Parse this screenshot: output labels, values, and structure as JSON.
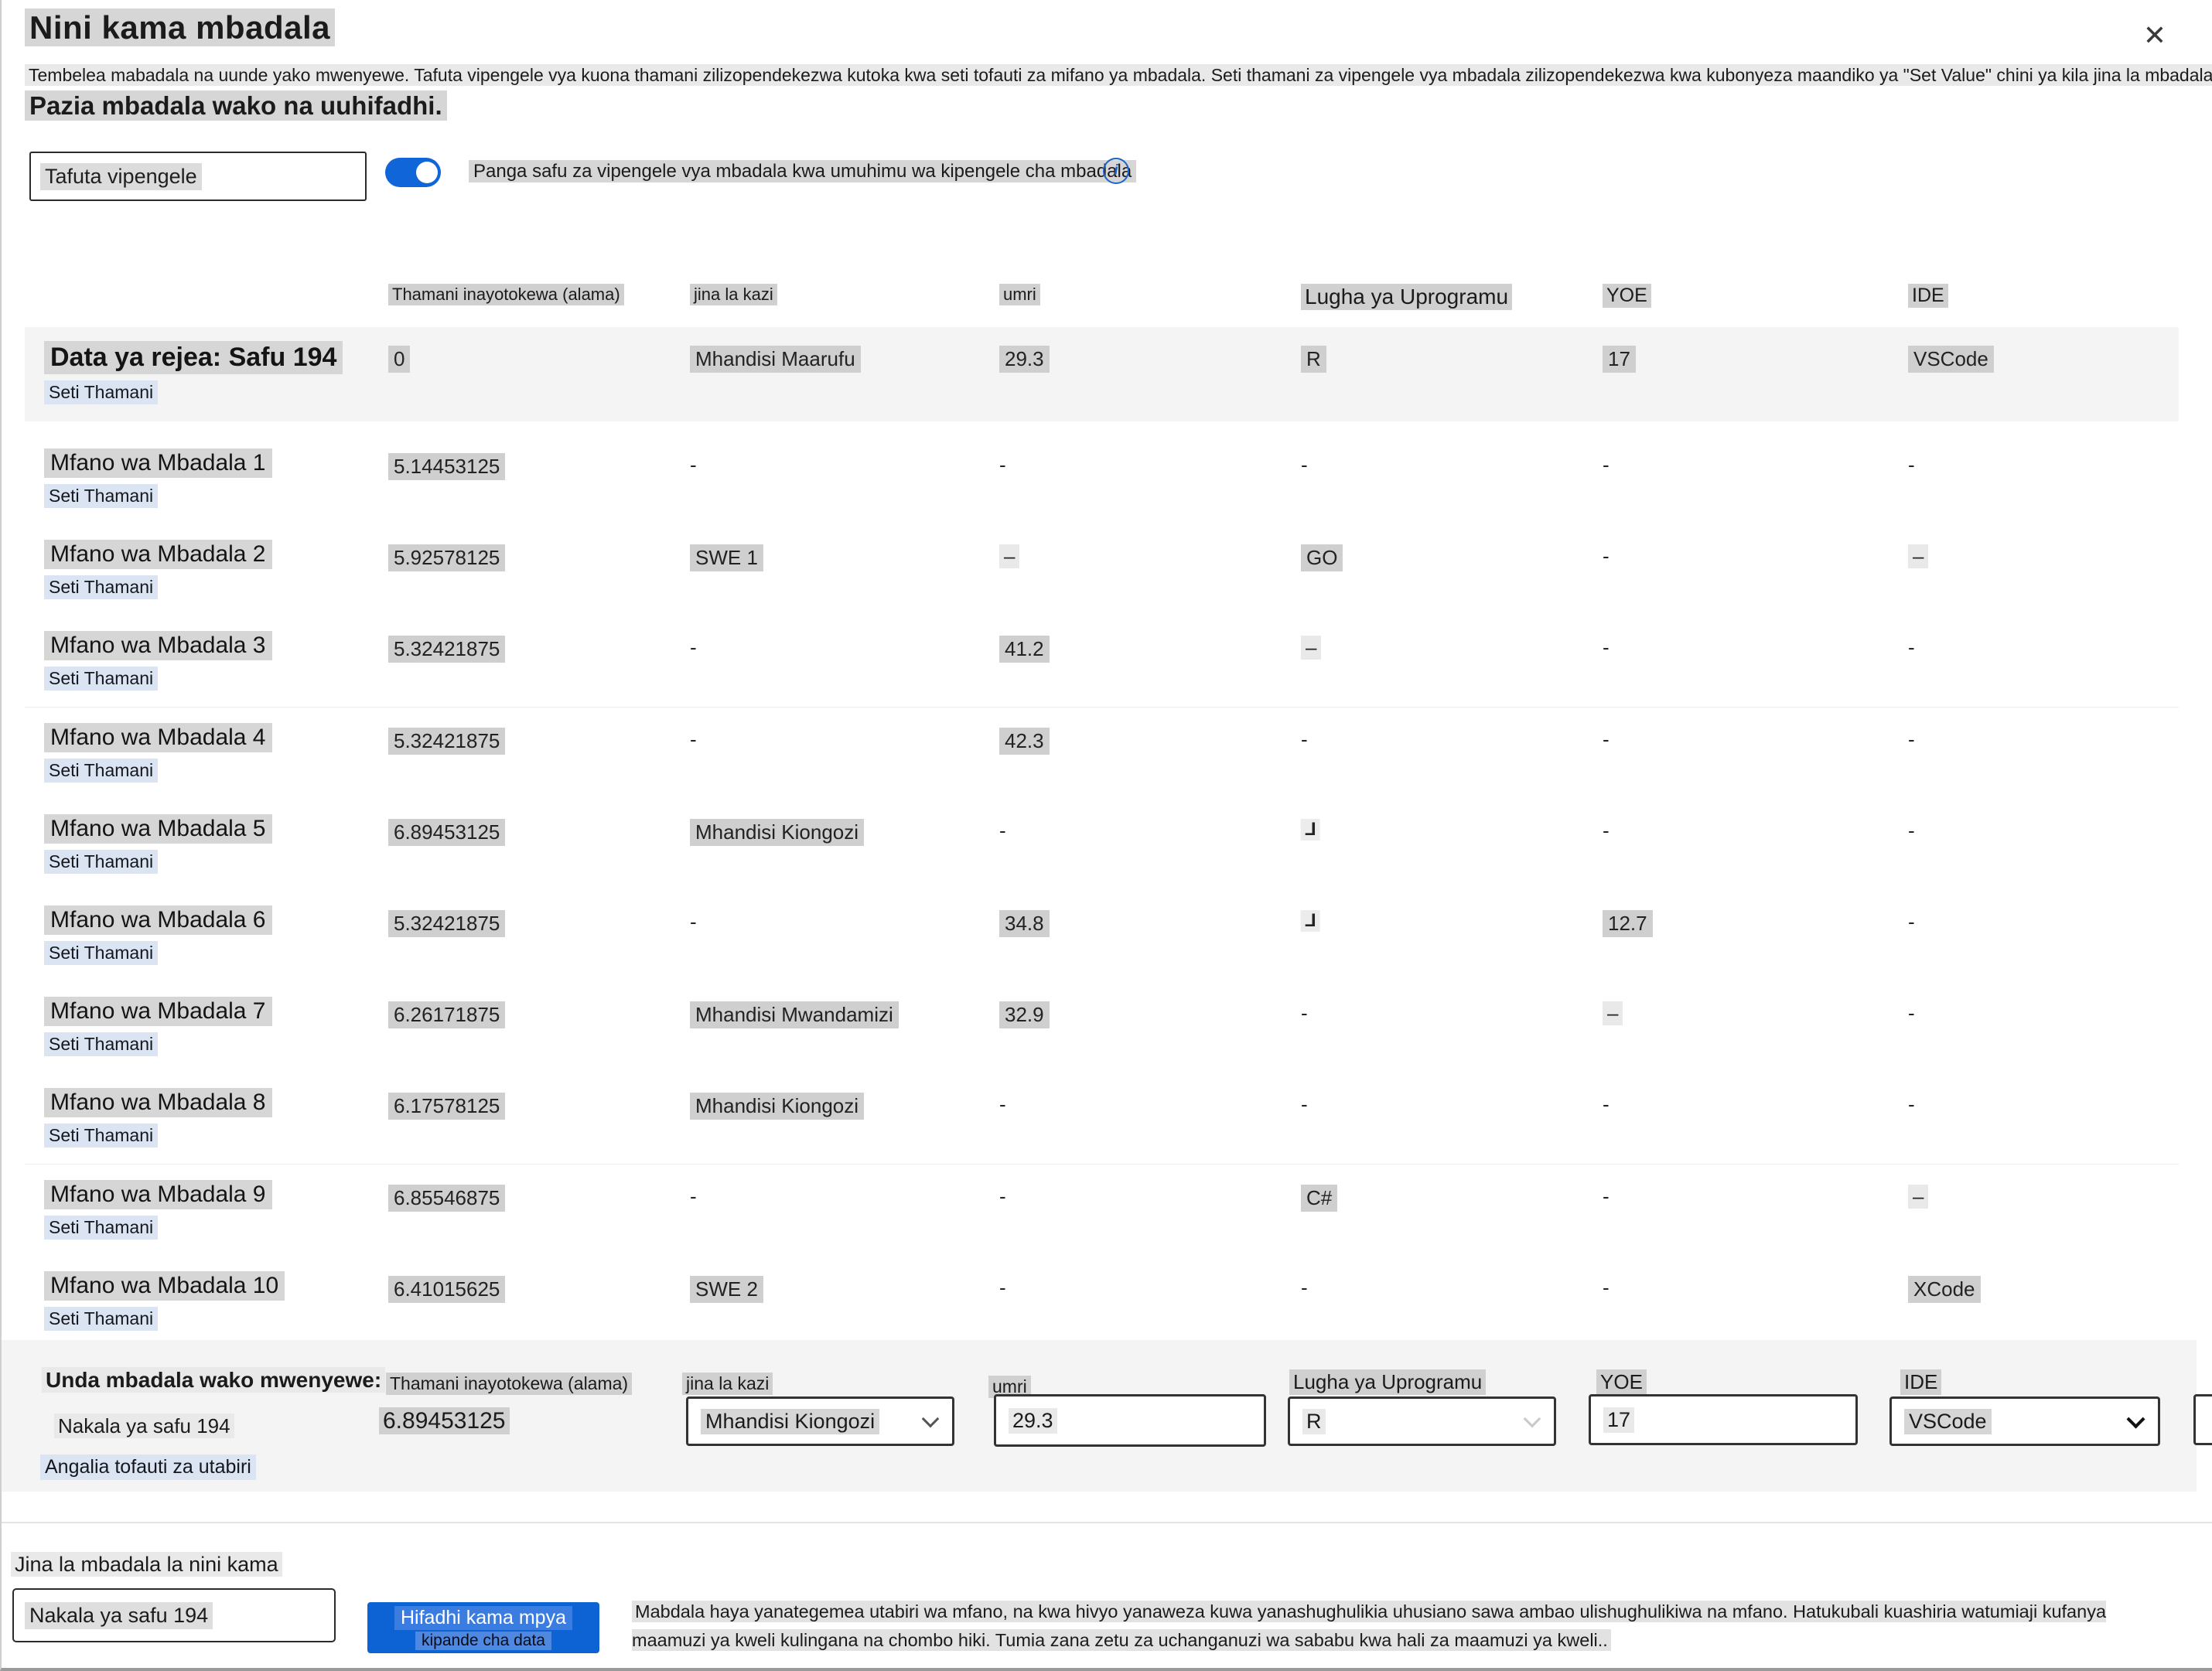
{
  "header": {
    "title": "Nini kama mbadala",
    "description": "Tembelea mabadala na uunde yako mwenyewe. Tafuta vipengele vya kuona thamani zilizopendekezwa kutoka kwa seti tofauti za mifano ya mbadala. Seti thamani za vipengele vya mbadala zilizopendekezwa kwa kubonyeza maandiko ya \"Set Value\" chini ya kila jina la mbadala.",
    "subheading": "Pazia mbadala wako na uuhifadhi."
  },
  "icons": {
    "close": "✕",
    "info": "i"
  },
  "controls": {
    "search_placeholder": "Tafuta vipengele",
    "toggle_label": "Panga safu za vipengele vya mbadala kwa umuhimu wa kipengele cha mbadala",
    "toggle_on": true
  },
  "colors": {
    "accent_blue": "#1065d8",
    "button_blue": "#0d62d4",
    "button_text_highlight": "#3b7ce1",
    "highlight_gray": "#d6d6d6",
    "highlight_blue": "#dae4f2"
  },
  "table": {
    "columns": [
      "Thamani inayotokewa (alama)",
      "jina la kazi",
      "umri",
      "Lugha ya Uprogramu",
      "YOE",
      "IDE"
    ],
    "set_value_label": "Seti Thamani",
    "rows": [
      {
        "name": "Data ya rejea: Safu 194",
        "reference": true,
        "cells": [
          {
            "t": "0",
            "h": "g"
          },
          {
            "t": "Mhandisi Maarufu",
            "h": "g"
          },
          {
            "t": "29.3",
            "h": "g"
          },
          {
            "t": "R",
            "h": "g"
          },
          {
            "t": "17",
            "h": "g"
          },
          {
            "t": "VSCode",
            "h": "g"
          }
        ]
      },
      {
        "name": "Mfano wa Mbadala 1",
        "cells": [
          {
            "t": "5.14453125",
            "h": "g"
          },
          {
            "t": "-"
          },
          {
            "t": "-"
          },
          {
            "t": "-"
          },
          {
            "t": "-"
          },
          {
            "t": "-"
          }
        ]
      },
      {
        "name": "Mfano wa Mbadala 2",
        "cells": [
          {
            "t": "5.92578125",
            "h": "g"
          },
          {
            "t": "SWE 1",
            "h": "g"
          },
          {
            "t": "–",
            "h": "lt"
          },
          {
            "t": "GO",
            "h": "g"
          },
          {
            "t": "-"
          },
          {
            "t": "–",
            "h": "lt"
          }
        ]
      },
      {
        "name": "Mfano wa Mbadala 3",
        "cells": [
          {
            "t": "5.32421875",
            "h": "g"
          },
          {
            "t": "-"
          },
          {
            "t": "41.2",
            "h": "g"
          },
          {
            "t": "–",
            "h": "lt"
          },
          {
            "t": "-"
          },
          {
            "t": "-"
          }
        ]
      },
      {
        "name": "Mfano wa Mbadala 4",
        "cells": [
          {
            "t": "5.32421875",
            "h": "g"
          },
          {
            "t": "-"
          },
          {
            "t": "42.3",
            "h": "g"
          },
          {
            "t": "-"
          },
          {
            "t": "-"
          },
          {
            "t": "-"
          }
        ]
      },
      {
        "name": "Mfano wa Mbadala 5",
        "cells": [
          {
            "t": "6.89453125",
            "h": "g"
          },
          {
            "t": "Mhandisi Kiongozi",
            "h": "g"
          },
          {
            "t": "-"
          },
          {
            "t": "L",
            "h": "flip"
          },
          {
            "t": "-"
          },
          {
            "t": "-"
          }
        ]
      },
      {
        "name": "Mfano wa Mbadala 6",
        "cells": [
          {
            "t": "5.32421875",
            "h": "g"
          },
          {
            "t": "-"
          },
          {
            "t": "34.8",
            "h": "g"
          },
          {
            "t": "L",
            "h": "flip"
          },
          {
            "t": "12.7",
            "h": "g"
          },
          {
            "t": "-"
          }
        ]
      },
      {
        "name": "Mfano wa Mbadala 7",
        "cells": [
          {
            "t": "6.26171875",
            "h": "g"
          },
          {
            "t": "Mhandisi Mwandamizi",
            "h": "g"
          },
          {
            "t": "32.9",
            "h": "g"
          },
          {
            "t": "-"
          },
          {
            "t": "–",
            "h": "lt"
          },
          {
            "t": "-"
          }
        ]
      },
      {
        "name": "Mfano wa Mbadala 8",
        "cells": [
          {
            "t": "6.17578125",
            "h": "g"
          },
          {
            "t": "Mhandisi Kiongozi",
            "h": "g"
          },
          {
            "t": "-"
          },
          {
            "t": "-"
          },
          {
            "t": "-"
          },
          {
            "t": "-"
          }
        ]
      },
      {
        "name": "Mfano wa Mbadala 9",
        "cells": [
          {
            "t": "6.85546875",
            "h": "g"
          },
          {
            "t": "-"
          },
          {
            "t": "-"
          },
          {
            "t": "C#",
            "h": "g"
          },
          {
            "t": "-"
          },
          {
            "t": "–",
            "h": "lt"
          }
        ]
      },
      {
        "name": "Mfano wa Mbadala 10",
        "cells": [
          {
            "t": "6.41015625",
            "h": "g"
          },
          {
            "t": "SWE 2",
            "h": "g"
          },
          {
            "t": "-"
          },
          {
            "t": "-"
          },
          {
            "t": "-"
          },
          {
            "t": "XCode",
            "h": "g"
          }
        ]
      }
    ]
  },
  "builder": {
    "title": "Unda mbadala wako mwenyewe:",
    "row_label": "Nakala ya safu 194",
    "predicted_value": "6.89453125",
    "job_value": "Mhandisi Kiongozi",
    "age_value": "29.3",
    "lang_value": "R",
    "yoe_value": "17",
    "ide_value": "VSCode",
    "link": "Angalia tofauti za utabiri"
  },
  "footer": {
    "name_label": "Jina la mbadala la nini kama",
    "name_value": "Nakala ya safu 194",
    "save_line1": "Hifadhi kama mpya",
    "save_line2": "kipande cha data",
    "disclaimer": "Mabdala haya yanategemea utabiri wa mfano, na kwa hivyo yanaweza kuwa yanashughulikia uhusiano sawa ambao ulishughulikiwa na mfano. Hatukubali kuashiria watumiaji kufanya maamuzi ya kweli kulingana na chombo hiki. Tumia zana zetu za uchanganuzi wa sababu kwa hali za maamuzi ya kweli.."
  }
}
